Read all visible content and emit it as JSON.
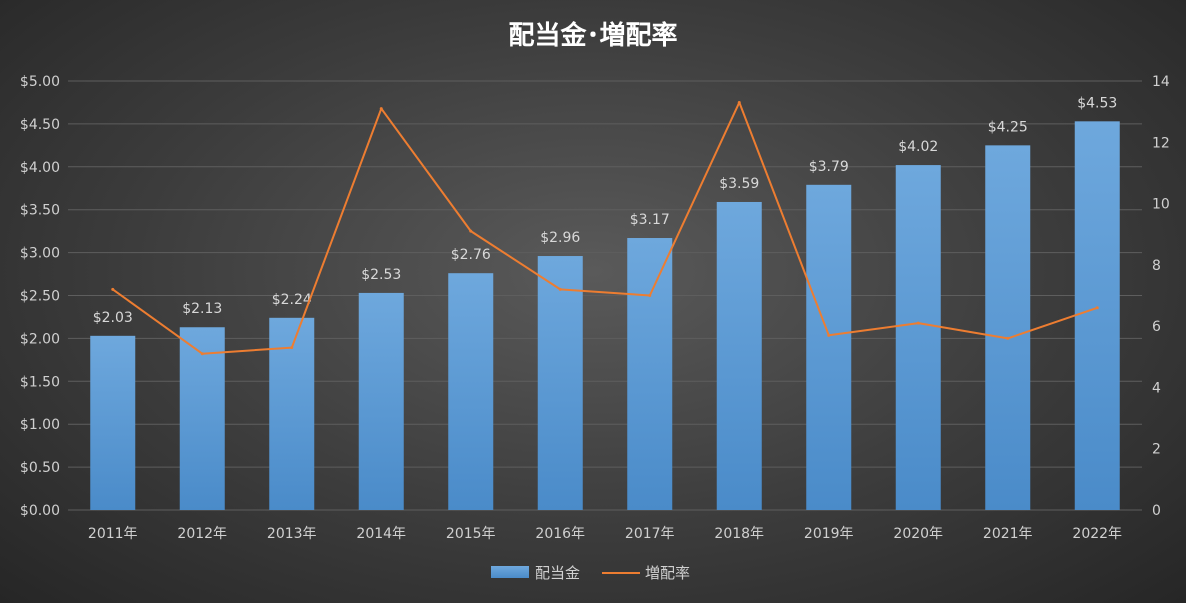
{
  "chart_data": {
    "type": "bar+line",
    "title": "配当金･増配率",
    "categories": [
      "2011年",
      "2012年",
      "2013年",
      "2014年",
      "2015年",
      "2016年",
      "2017年",
      "2018年",
      "2019年",
      "2020年",
      "2021年",
      "2022年"
    ],
    "series": [
      {
        "name": "配当金",
        "type": "bar",
        "axis": "left",
        "values": [
          2.03,
          2.13,
          2.24,
          2.53,
          2.76,
          2.96,
          3.17,
          3.59,
          3.79,
          4.02,
          4.25,
          4.53
        ],
        "data_labels": [
          "$2.03",
          "$2.13",
          "$2.24",
          "$2.53",
          "$2.76",
          "$2.96",
          "$3.17",
          "$3.59",
          "$3.79",
          "$4.02",
          "$4.25",
          "$4.53"
        ],
        "color": "#5b9bd5"
      },
      {
        "name": "増配率",
        "type": "line",
        "axis": "right",
        "values": [
          7.2,
          5.1,
          5.3,
          13.1,
          9.1,
          7.2,
          7.0,
          13.3,
          5.7,
          6.1,
          5.6,
          6.6
        ],
        "color": "#ed7d31"
      }
    ],
    "y_left": {
      "ylim": [
        0,
        5
      ],
      "ticks": [
        "$0.00",
        "$0.50",
        "$1.00",
        "$1.50",
        "$2.00",
        "$2.50",
        "$3.00",
        "$3.50",
        "$4.00",
        "$4.50",
        "$5.00"
      ]
    },
    "y_right": {
      "ylim": [
        0,
        14
      ],
      "ticks": [
        "0",
        "2",
        "4",
        "6",
        "8",
        "10",
        "12",
        "14"
      ]
    },
    "grid": true,
    "legend_position": "bottom"
  }
}
